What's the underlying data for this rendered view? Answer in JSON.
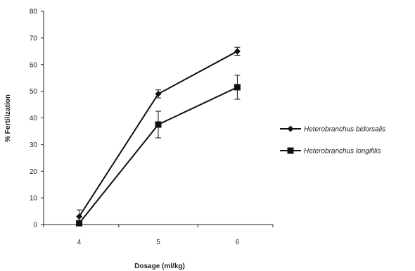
{
  "chart_data": {
    "type": "line",
    "title": "",
    "xlabel": "Dosage (ml/kg)",
    "ylabel": "% Fertilization",
    "x": [
      4,
      5,
      6
    ],
    "x_tick_labels": [
      "4",
      "5",
      "6"
    ],
    "ylim": [
      0,
      80
    ],
    "y_ticks": [
      0,
      10,
      20,
      30,
      40,
      50,
      60,
      70,
      80
    ],
    "y_tick_labels": [
      "0",
      "10",
      "20",
      "30",
      "40",
      "50",
      "60",
      "70",
      "80"
    ],
    "grid": false,
    "legend_position": "right",
    "series": [
      {
        "name": "Heterobranchus bidorsalis",
        "marker": "diamond",
        "color": "#111111",
        "values": [
          3,
          49,
          65
        ],
        "errors": [
          2.5,
          1.5,
          1.5
        ]
      },
      {
        "name": "Heterobranchus longifilis",
        "marker": "square",
        "color": "#111111",
        "values": [
          0.5,
          37.5,
          51.5
        ],
        "errors": [
          1,
          5,
          4.5
        ]
      }
    ]
  }
}
